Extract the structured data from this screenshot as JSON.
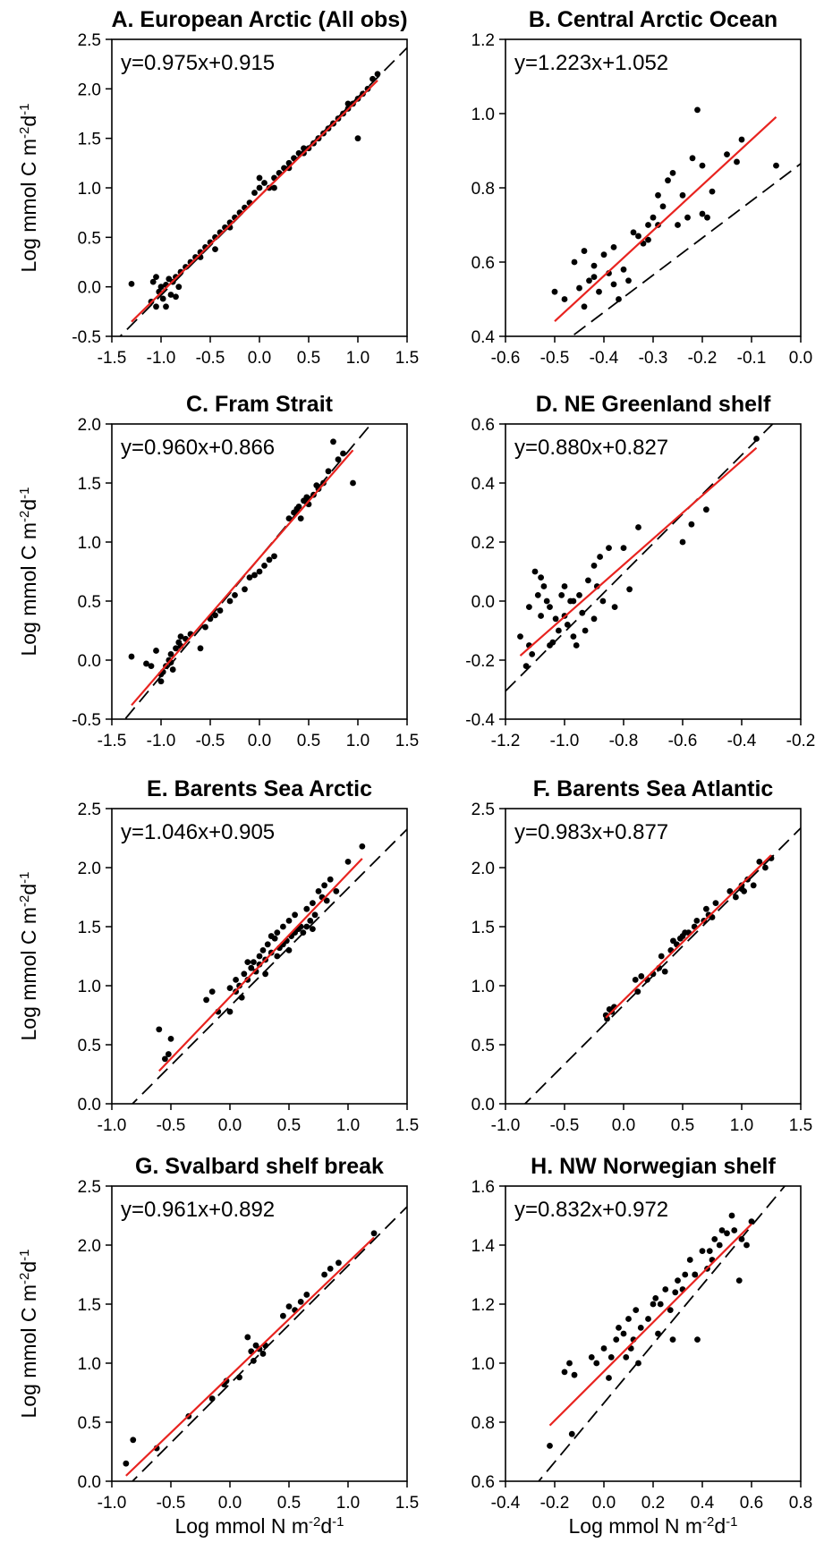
{
  "chart_data": [
    {
      "type": "scatter",
      "title": "A. European Arctic (All obs)",
      "equation": "y=0.975x+0.915",
      "fit": {
        "slope": 0.975,
        "intercept": 0.915,
        "color": "#e8231f"
      },
      "identity_line": {
        "slope": 1,
        "intercept": 0.915
      },
      "xlim": [
        -1.5,
        1.5
      ],
      "ylim": [
        -0.5,
        2.5
      ],
      "xticks": [
        "-1.5",
        "-1.0",
        "-0.5",
        "0.0",
        "0.5",
        "1.0",
        "1.5"
      ],
      "yticks": [
        "-0.5",
        "0.0",
        "0.5",
        "1.0",
        "1.5",
        "2.0",
        "2.5"
      ],
      "xlabel": "",
      "ylabel": "Log mmol C m-2d-1",
      "points": {
        "x": [
          -1.3,
          -1.1,
          -1.08,
          -1.05,
          -1.02,
          -1.0,
          -0.98,
          -0.95,
          -0.92,
          -0.9,
          -0.88,
          -0.85,
          -0.82,
          -0.8,
          -0.75,
          -0.7,
          -0.65,
          -0.6,
          -0.55,
          -0.5,
          -0.45,
          -0.4,
          -0.35,
          -0.3,
          -0.25,
          -0.2,
          -0.15,
          -0.1,
          -0.05,
          0.0,
          0.05,
          0.1,
          0.15,
          0.2,
          0.25,
          0.3,
          0.35,
          0.4,
          0.45,
          0.5,
          0.55,
          0.6,
          0.65,
          0.7,
          0.75,
          0.8,
          0.85,
          0.9,
          0.95,
          1.0,
          1.05,
          1.1,
          1.15,
          1.2,
          -1.05,
          -0.95,
          -0.85,
          -0.6,
          -0.3,
          0.0,
          0.3,
          0.6,
          0.9,
          -0.45,
          0.15,
          0.45,
          0.75,
          1.0
        ],
        "y": [
          0.03,
          -0.15,
          0.05,
          -0.2,
          -0.05,
          0.0,
          -0.12,
          0.02,
          0.08,
          -0.08,
          0.05,
          0.1,
          0.0,
          0.15,
          0.2,
          0.25,
          0.3,
          0.35,
          0.4,
          0.45,
          0.5,
          0.55,
          0.6,
          0.65,
          0.7,
          0.75,
          0.8,
          0.85,
          0.95,
          1.0,
          1.05,
          1.0,
          1.1,
          1.15,
          1.2,
          1.25,
          1.3,
          1.35,
          1.4,
          1.4,
          1.45,
          1.5,
          1.55,
          1.6,
          1.65,
          1.7,
          1.75,
          1.8,
          1.85,
          1.9,
          1.95,
          2.0,
          2.1,
          2.15,
          0.1,
          -0.2,
          -0.1,
          0.3,
          0.6,
          1.1,
          1.2,
          1.5,
          1.85,
          0.38,
          1.0,
          1.35,
          1.65,
          1.5
        ]
      }
    },
    {
      "type": "scatter",
      "title": "B. Central Arctic Ocean",
      "equation": "y=1.223x+1.052",
      "fit": {
        "slope": 1.223,
        "intercept": 1.052,
        "color": "#e8231f"
      },
      "identity_line": {
        "slope": 1,
        "intercept": 0.865
      },
      "xlim": [
        -0.6,
        0.0
      ],
      "ylim": [
        0.4,
        1.2
      ],
      "xticks": [
        "-0.6",
        "-0.5",
        "-0.4",
        "-0.3",
        "-0.2",
        "-0.1",
        "0.0"
      ],
      "yticks": [
        "0.4",
        "0.6",
        "0.8",
        "1.0",
        "1.2"
      ],
      "xlabel": "",
      "ylabel": "",
      "points": {
        "x": [
          -0.5,
          -0.48,
          -0.46,
          -0.45,
          -0.44,
          -0.43,
          -0.42,
          -0.41,
          -0.4,
          -0.39,
          -0.38,
          -0.37,
          -0.36,
          -0.35,
          -0.34,
          -0.32,
          -0.31,
          -0.3,
          -0.29,
          -0.28,
          -0.27,
          -0.26,
          -0.25,
          -0.24,
          -0.23,
          -0.22,
          -0.21,
          -0.2,
          -0.19,
          -0.18,
          -0.15,
          -0.13,
          -0.12,
          -0.05,
          -0.44,
          -0.42,
          -0.38,
          -0.33,
          -0.29,
          -0.2,
          -0.31
        ],
        "y": [
          0.52,
          0.5,
          0.6,
          0.53,
          0.48,
          0.55,
          0.56,
          0.52,
          0.62,
          0.57,
          0.64,
          0.5,
          0.58,
          0.55,
          0.68,
          0.65,
          0.7,
          0.72,
          0.78,
          0.75,
          0.82,
          0.84,
          0.7,
          0.78,
          0.72,
          0.88,
          1.01,
          0.73,
          0.72,
          0.79,
          0.89,
          0.87,
          0.93,
          0.86,
          0.63,
          0.59,
          0.54,
          0.67,
          0.7,
          0.86,
          0.66
        ]
      }
    },
    {
      "type": "scatter",
      "title": "C. Fram Strait",
      "equation": "y=0.960x+0.866",
      "fit": {
        "slope": 0.96,
        "intercept": 0.866,
        "color": "#e8231f"
      },
      "identity_line": {
        "slope": 1,
        "intercept": 0.866
      },
      "xlim": [
        -1.5,
        1.5
      ],
      "ylim": [
        -0.5,
        2.0
      ],
      "xticks": [
        "-1.5",
        "-1.0",
        "-0.5",
        "0.0",
        "0.5",
        "1.0",
        "1.5"
      ],
      "yticks": [
        "-0.5",
        "0.0",
        "0.5",
        "1.0",
        "1.5",
        "2.0"
      ],
      "xlabel": "",
      "ylabel": "Log mmol C m-2d-1",
      "points": {
        "x": [
          -1.3,
          -1.15,
          -1.1,
          -1.05,
          -1.0,
          -0.98,
          -0.95,
          -0.92,
          -0.9,
          -0.88,
          -0.85,
          -0.82,
          -0.8,
          -0.75,
          -0.7,
          -0.6,
          -0.55,
          -0.5,
          -0.45,
          -0.4,
          -0.3,
          -0.25,
          -0.15,
          -0.1,
          -0.05,
          0.0,
          0.05,
          0.1,
          0.15,
          0.3,
          0.35,
          0.4,
          0.42,
          0.45,
          0.5,
          0.55,
          0.6,
          0.65,
          0.7,
          0.75,
          0.8,
          0.85,
          0.95,
          -1.0,
          -0.9,
          -0.8,
          0.38,
          0.48,
          0.58
        ],
        "y": [
          0.03,
          -0.03,
          -0.05,
          0.08,
          -0.18,
          -0.1,
          -0.05,
          0.0,
          0.05,
          -0.08,
          0.1,
          0.15,
          0.2,
          0.18,
          0.22,
          0.1,
          0.28,
          0.35,
          0.38,
          0.42,
          0.5,
          0.55,
          0.6,
          0.7,
          0.72,
          0.75,
          0.8,
          0.85,
          0.88,
          1.2,
          1.25,
          1.3,
          1.2,
          1.35,
          1.32,
          1.4,
          1.45,
          1.5,
          1.6,
          1.85,
          1.7,
          1.75,
          1.5,
          -0.12,
          -0.02,
          0.12,
          1.28,
          1.38,
          1.48
        ]
      }
    },
    {
      "type": "scatter",
      "title": "D. NE Greenland shelf",
      "equation": "y=0.880x+0.827",
      "fit": {
        "slope": 0.88,
        "intercept": 0.827,
        "color": "#e8231f"
      },
      "identity_line": {
        "slope": 1,
        "intercept": 0.895
      },
      "xlim": [
        -1.2,
        -0.2
      ],
      "ylim": [
        -0.4,
        0.6
      ],
      "xticks": [
        "-1.2",
        "-1.0",
        "-0.8",
        "-0.6",
        "-0.4",
        "-0.2"
      ],
      "yticks": [
        "-0.4",
        "-0.2",
        "0.0",
        "0.2",
        "0.4",
        "0.6"
      ],
      "xlabel": "",
      "ylabel": "",
      "points": {
        "x": [
          -1.15,
          -1.13,
          -1.12,
          -1.11,
          -1.1,
          -1.09,
          -1.08,
          -1.07,
          -1.06,
          -1.05,
          -1.04,
          -1.03,
          -1.02,
          -1.01,
          -1.0,
          -0.99,
          -0.98,
          -0.97,
          -0.96,
          -0.95,
          -0.94,
          -0.93,
          -0.92,
          -0.9,
          -0.89,
          -0.88,
          -0.87,
          -0.85,
          -0.83,
          -0.8,
          -0.78,
          -0.75,
          -0.6,
          -0.57,
          -0.52,
          -0.35,
          -1.12,
          -1.08,
          -1.05,
          -1.0,
          -0.97,
          -0.9
        ],
        "y": [
          -0.12,
          -0.22,
          -0.15,
          -0.18,
          0.1,
          0.02,
          -0.05,
          0.05,
          0.0,
          -0.02,
          -0.14,
          -0.06,
          -0.1,
          0.02,
          0.05,
          -0.08,
          0.0,
          -0.12,
          -0.15,
          0.02,
          -0.04,
          -0.1,
          0.07,
          -0.06,
          0.05,
          0.15,
          0.0,
          0.18,
          -0.02,
          0.18,
          0.04,
          0.25,
          0.2,
          0.26,
          0.31,
          0.55,
          -0.02,
          0.08,
          -0.15,
          -0.05,
          0.0,
          0.12
        ]
      }
    },
    {
      "type": "scatter",
      "title": "E. Barents Sea Arctic",
      "equation": "y=1.046x+0.905",
      "fit": {
        "slope": 1.046,
        "intercept": 0.905,
        "color": "#e8231f"
      },
      "identity_line": {
        "slope": 1,
        "intercept": 0.825
      },
      "xlim": [
        -1.0,
        1.5
      ],
      "ylim": [
        0.0,
        2.5
      ],
      "xticks": [
        "-1.0",
        "-0.5",
        "0.0",
        "0.5",
        "1.0",
        "1.5"
      ],
      "yticks": [
        "0.0",
        "0.5",
        "1.0",
        "1.5",
        "2.0",
        "2.5"
      ],
      "xlabel": "",
      "ylabel": "Log mmol C m-2d-1",
      "points": {
        "x": [
          -0.6,
          -0.55,
          -0.52,
          -0.5,
          -0.2,
          -0.1,
          0.0,
          0.05,
          0.08,
          0.1,
          0.12,
          0.15,
          0.18,
          0.2,
          0.22,
          0.25,
          0.28,
          0.3,
          0.32,
          0.35,
          0.38,
          0.4,
          0.42,
          0.45,
          0.48,
          0.5,
          0.52,
          0.55,
          0.58,
          0.6,
          0.62,
          0.65,
          0.68,
          0.7,
          0.72,
          0.75,
          0.78,
          0.8,
          0.82,
          0.85,
          0.9,
          1.0,
          1.12,
          0.05,
          0.15,
          0.25,
          0.35,
          0.45,
          0.55,
          0.65,
          0.0,
          0.3,
          0.5,
          0.7,
          -0.15,
          0.4
        ],
        "y": [
          0.63,
          0.38,
          0.42,
          0.55,
          0.88,
          0.78,
          0.98,
          0.95,
          1.0,
          0.9,
          1.1,
          1.05,
          1.15,
          1.2,
          1.12,
          1.25,
          1.3,
          1.22,
          1.35,
          1.28,
          1.4,
          1.45,
          1.32,
          1.5,
          1.38,
          1.55,
          1.42,
          1.6,
          1.48,
          1.5,
          1.45,
          1.65,
          1.55,
          1.7,
          1.6,
          1.8,
          1.75,
          1.85,
          1.72,
          1.9,
          1.8,
          2.05,
          2.18,
          1.05,
          1.2,
          1.18,
          1.42,
          1.35,
          1.45,
          1.5,
          0.78,
          1.1,
          1.3,
          1.48,
          0.95,
          1.25
        ]
      }
    },
    {
      "type": "scatter",
      "title": "F. Barents Sea Atlantic",
      "equation": "y=0.983x+0.877",
      "fit": {
        "slope": 0.983,
        "intercept": 0.877,
        "color": "#e8231f"
      },
      "identity_line": {
        "slope": 1,
        "intercept": 0.835
      },
      "xlim": [
        -1.0,
        1.5
      ],
      "ylim": [
        0.0,
        2.5
      ],
      "xticks": [
        "-1.0",
        "-0.5",
        "0.0",
        "0.5",
        "1.0",
        "1.5"
      ],
      "yticks": [
        "0.0",
        "0.5",
        "1.0",
        "1.5",
        "2.0",
        "2.5"
      ],
      "xlabel": "",
      "ylabel": "",
      "points": {
        "x": [
          -0.15,
          -0.12,
          -0.1,
          -0.08,
          0.1,
          0.12,
          0.2,
          0.25,
          0.3,
          0.32,
          0.35,
          0.4,
          0.45,
          0.48,
          0.5,
          0.52,
          0.55,
          0.6,
          0.62,
          0.7,
          0.72,
          0.75,
          0.78,
          0.9,
          0.95,
          1.0,
          1.02,
          1.05,
          1.1,
          1.15,
          1.2,
          1.25,
          -0.14,
          0.15,
          0.42,
          0.68,
          1.0
        ],
        "y": [
          0.75,
          0.8,
          0.78,
          0.82,
          1.05,
          0.95,
          1.05,
          1.1,
          1.15,
          1.25,
          1.12,
          1.3,
          1.35,
          1.4,
          1.42,
          1.45,
          1.45,
          1.5,
          1.55,
          1.65,
          1.6,
          1.58,
          1.7,
          1.8,
          1.75,
          1.85,
          1.8,
          1.9,
          1.85,
          2.05,
          2.0,
          2.08,
          0.72,
          1.08,
          1.38,
          1.55,
          1.82
        ]
      }
    },
    {
      "type": "scatter",
      "title": "G. Svalbard shelf break",
      "equation": "y=0.961x+0.892",
      "fit": {
        "slope": 0.961,
        "intercept": 0.892,
        "color": "#e8231f"
      },
      "identity_line": {
        "slope": 1,
        "intercept": 0.825
      },
      "xlim": [
        -1.0,
        1.5
      ],
      "ylim": [
        0.0,
        2.5
      ],
      "xticks": [
        "-1.0",
        "-0.5",
        "0.0",
        "0.5",
        "1.0",
        "1.5"
      ],
      "yticks": [
        "0.0",
        "0.5",
        "1.0",
        "1.5",
        "2.0",
        "2.5"
      ],
      "xlabel": "Log mmol N m-2d-1",
      "ylabel": "Log mmol C m-2d-1",
      "points": {
        "x": [
          -0.88,
          -0.82,
          -0.62,
          -0.35,
          -0.15,
          -0.05,
          -0.03,
          0.08,
          0.15,
          0.18,
          0.2,
          0.22,
          0.25,
          0.28,
          0.3,
          0.45,
          0.5,
          0.55,
          0.6,
          0.65,
          0.8,
          0.85,
          0.92,
          1.22
        ],
        "y": [
          0.15,
          0.35,
          0.28,
          0.55,
          0.7,
          0.82,
          0.85,
          0.88,
          1.22,
          1.1,
          1.02,
          1.15,
          1.12,
          1.08,
          1.15,
          1.4,
          1.48,
          1.45,
          1.52,
          1.58,
          1.75,
          1.8,
          1.85,
          2.1
        ]
      }
    },
    {
      "type": "scatter",
      "title": "H. NW Norwegian shelf",
      "equation": "y=0.832x+0.972",
      "fit": {
        "slope": 0.832,
        "intercept": 0.972,
        "color": "#e8231f"
      },
      "identity_line": {
        "slope": 1,
        "intercept": 0.865
      },
      "xlim": [
        -0.4,
        0.8
      ],
      "ylim": [
        0.6,
        1.6
      ],
      "xticks": [
        "-0.4",
        "-0.2",
        "0.0",
        "0.2",
        "0.4",
        "0.6",
        "0.8"
      ],
      "yticks": [
        "0.6",
        "0.8",
        "1.0",
        "1.2",
        "1.4",
        "1.6"
      ],
      "xlabel": "Log mmol N m-2d-1",
      "ylabel": "",
      "points": {
        "x": [
          -0.22,
          -0.16,
          -0.14,
          -0.13,
          -0.12,
          -0.05,
          -0.03,
          0.0,
          0.02,
          0.03,
          0.05,
          0.06,
          0.08,
          0.1,
          0.11,
          0.12,
          0.14,
          0.15,
          0.18,
          0.2,
          0.22,
          0.23,
          0.25,
          0.27,
          0.28,
          0.3,
          0.32,
          0.33,
          0.35,
          0.37,
          0.38,
          0.4,
          0.42,
          0.43,
          0.45,
          0.47,
          0.48,
          0.5,
          0.52,
          0.53,
          0.55,
          0.56,
          0.58,
          0.6,
          0.13,
          0.21,
          0.29,
          0.37,
          0.09,
          0.44
        ],
        "y": [
          0.72,
          0.97,
          1.0,
          0.76,
          0.96,
          1.02,
          1.0,
          1.05,
          0.95,
          1.02,
          1.08,
          1.12,
          1.1,
          1.15,
          1.05,
          1.08,
          1.0,
          1.12,
          1.15,
          1.2,
          1.1,
          1.2,
          1.25,
          1.18,
          1.08,
          1.28,
          1.25,
          1.3,
          1.35,
          1.3,
          1.08,
          1.38,
          1.32,
          1.38,
          1.42,
          1.4,
          1.45,
          1.44,
          1.5,
          1.45,
          1.28,
          1.42,
          1.4,
          1.48,
          1.18,
          1.22,
          1.24,
          1.3,
          1.02,
          1.35
        ]
      }
    }
  ]
}
